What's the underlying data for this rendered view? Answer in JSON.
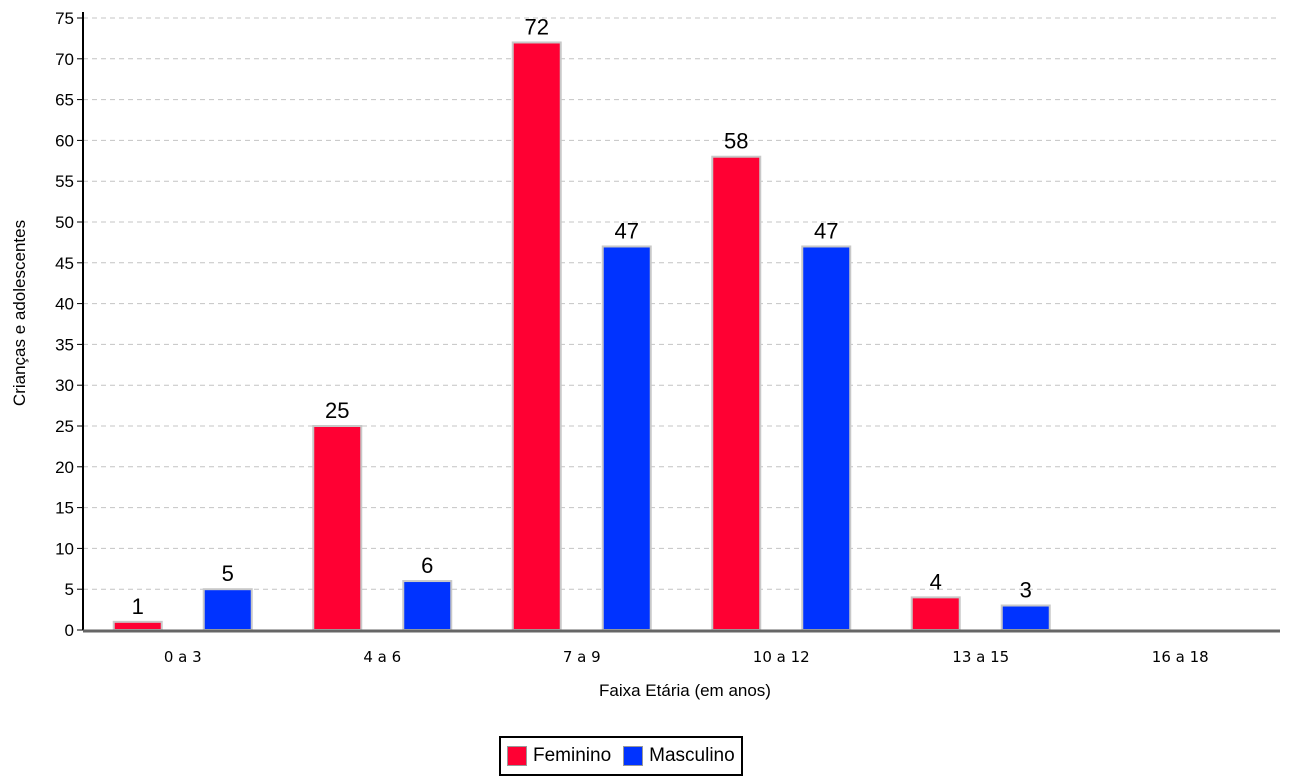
{
  "chart_data": {
    "type": "bar",
    "categories": [
      "0 a 3",
      "4 a 6",
      "7 a 9",
      "10 a 12",
      "13 a 15",
      "16 a 18"
    ],
    "series": [
      {
        "name": "Feminino",
        "color": "#ff0033",
        "values": [
          1,
          25,
          72,
          58,
          4,
          null
        ]
      },
      {
        "name": "Masculino",
        "color": "#0033ff",
        "values": [
          5,
          6,
          47,
          47,
          3,
          null
        ]
      }
    ],
    "xlabel": "Faixa Etária (em anos)",
    "ylabel": "Crianças e adolescentes",
    "ylim": [
      0,
      75
    ],
    "yticks": [
      0,
      5,
      10,
      15,
      20,
      25,
      30,
      35,
      40,
      45,
      50,
      55,
      60,
      65,
      70,
      75
    ],
    "grid": true,
    "legend_position": "bottom"
  }
}
